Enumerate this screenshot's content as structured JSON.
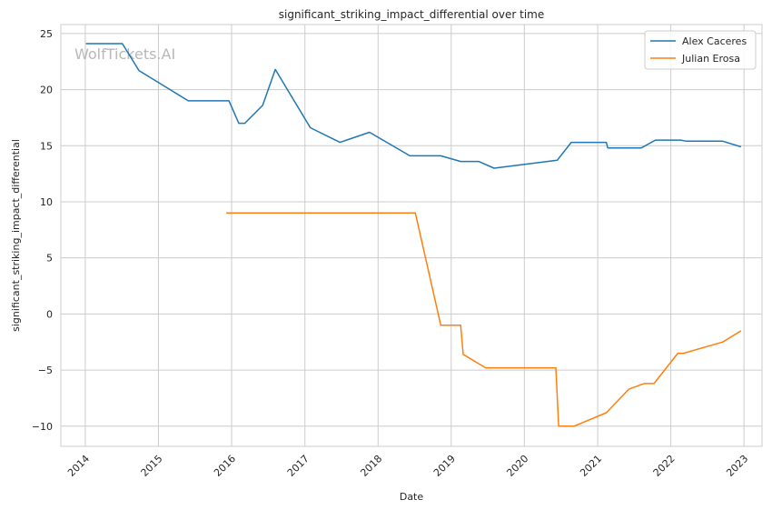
{
  "chart_data": {
    "type": "line",
    "title": "significant_striking_impact_differential over time",
    "xlabel": "Date",
    "ylabel": "significant_striking_impact_differential",
    "watermark": "WolfTickets.AI",
    "xlim": [
      "2013-09-01",
      "2023-04-01"
    ],
    "ylim": [
      -11.8,
      25.8
    ],
    "x_ticks": [
      "2014",
      "2015",
      "2016",
      "2017",
      "2018",
      "2019",
      "2020",
      "2021",
      "2022",
      "2023"
    ],
    "y_ticks": [
      25,
      20,
      15,
      10,
      5,
      0,
      -5,
      -10
    ],
    "y_tick_labels": [
      "25",
      "20",
      "15",
      "10",
      "5",
      "0",
      "−5",
      "−10"
    ],
    "grid": true,
    "legend_position": "top-right",
    "series": [
      {
        "name": "Alex Caceres",
        "color": "#1f77b4",
        "points": [
          [
            "2014-01-04",
            24.1
          ],
          [
            "2014-07-05",
            24.1
          ],
          [
            "2014-09-26",
            21.7
          ],
          [
            "2015-05-30",
            19.0
          ],
          [
            "2015-12-19",
            19.0
          ],
          [
            "2016-02-06",
            17.0
          ],
          [
            "2016-03-07",
            17.0
          ],
          [
            "2016-06-04",
            18.6
          ],
          [
            "2016-08-06",
            21.8
          ],
          [
            "2017-01-28",
            16.6
          ],
          [
            "2017-06-25",
            15.3
          ],
          [
            "2017-11-19",
            16.2
          ],
          [
            "2018-06-09",
            14.1
          ],
          [
            "2018-11-10",
            14.1
          ],
          [
            "2019-02-17",
            13.6
          ],
          [
            "2019-05-18",
            13.6
          ],
          [
            "2019-08-03",
            13.0
          ],
          [
            "2020-06-13",
            13.7
          ],
          [
            "2020-08-22",
            15.3
          ],
          [
            "2021-02-13",
            15.3
          ],
          [
            "2021-02-20",
            14.8
          ],
          [
            "2021-08-07",
            14.8
          ],
          [
            "2021-10-16",
            15.5
          ],
          [
            "2022-02-19",
            15.5
          ],
          [
            "2022-03-20",
            15.4
          ],
          [
            "2022-09-17",
            15.4
          ],
          [
            "2022-12-17",
            14.9
          ]
        ]
      },
      {
        "name": "Julian Erosa",
        "color": "#ff7f0e",
        "points": [
          [
            "2015-12-06",
            9.0
          ],
          [
            "2018-07-06",
            9.0
          ],
          [
            "2018-11-10",
            -1.0
          ],
          [
            "2019-02-17",
            -1.0
          ],
          [
            "2019-03-02",
            -3.6
          ],
          [
            "2019-06-22",
            -4.8
          ],
          [
            "2020-06-06",
            -4.8
          ],
          [
            "2020-06-20",
            -10.0
          ],
          [
            "2020-09-05",
            -10.0
          ],
          [
            "2021-02-13",
            -8.8
          ],
          [
            "2021-06-05",
            -6.7
          ],
          [
            "2021-08-21",
            -6.2
          ],
          [
            "2021-10-09",
            -6.2
          ],
          [
            "2022-02-05",
            -3.5
          ],
          [
            "2022-03-05",
            -3.5
          ],
          [
            "2022-09-17",
            -2.5
          ],
          [
            "2022-12-17",
            -1.5
          ]
        ]
      }
    ]
  }
}
